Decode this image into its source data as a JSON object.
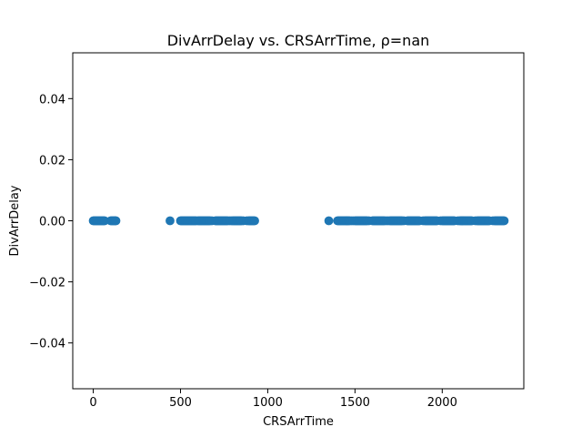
{
  "chart_data": {
    "type": "scatter",
    "title": "DivArrDelay vs. CRSArrTime, ρ=nan",
    "xlabel": "CRSArrTime",
    "ylabel": "DivArrDelay",
    "xlim": [
      -117.5,
      2467.5
    ],
    "ylim": [
      -0.055,
      0.055
    ],
    "xticks": [
      0,
      500,
      1000,
      1500,
      2000
    ],
    "xtick_labels": [
      "0",
      "500",
      "1000",
      "1500",
      "2000"
    ],
    "yticks": [
      -0.04,
      -0.02,
      0.0,
      0.02,
      0.04
    ],
    "ytick_labels": [
      "−0.04",
      "−0.02",
      "0.00",
      "0.02",
      "0.04"
    ],
    "grid": false,
    "marker_color": "#1f77b4",
    "series": [
      {
        "x": [
          0,
          5,
          10,
          15,
          20,
          25,
          30,
          35,
          40,
          45,
          50,
          55,
          60,
          65,
          100,
          105,
          110,
          115,
          120,
          125,
          130,
          440,
          500,
          505,
          510,
          515,
          520,
          525,
          530,
          535,
          540,
          545,
          550,
          555,
          560,
          565,
          570,
          575,
          580,
          585,
          590,
          600,
          605,
          610,
          615,
          620,
          625,
          630,
          635,
          640,
          645,
          650,
          655,
          660,
          665,
          670,
          680,
          700,
          705,
          710,
          715,
          720,
          725,
          730,
          735,
          740,
          745,
          750,
          755,
          760,
          765,
          770,
          780,
          790,
          800,
          805,
          810,
          815,
          820,
          825,
          830,
          835,
          840,
          845,
          850,
          860,
          880,
          890,
          895,
          900,
          905,
          910,
          915,
          920,
          925,
          1350,
          1400,
          1405,
          1410,
          1415,
          1420,
          1425,
          1430,
          1435,
          1440,
          1445,
          1450,
          1455,
          1460,
          1465,
          1470,
          1480,
          1490,
          1500,
          1505,
          1510,
          1515,
          1520,
          1525,
          1530,
          1535,
          1540,
          1545,
          1550,
          1555,
          1560,
          1565,
          1570,
          1580,
          1600,
          1605,
          1610,
          1615,
          1620,
          1625,
          1630,
          1635,
          1640,
          1645,
          1650,
          1655,
          1660,
          1665,
          1670,
          1680,
          1690,
          1700,
          1705,
          1710,
          1715,
          1720,
          1725,
          1730,
          1735,
          1740,
          1745,
          1750,
          1755,
          1760,
          1765,
          1770,
          1780,
          1800,
          1805,
          1810,
          1815,
          1820,
          1825,
          1830,
          1835,
          1840,
          1845,
          1850,
          1855,
          1860,
          1865,
          1870,
          1890,
          1900,
          1905,
          1910,
          1915,
          1920,
          1925,
          1930,
          1935,
          1940,
          1945,
          1950,
          1955,
          1960,
          1965,
          1970,
          1990,
          2000,
          2005,
          2010,
          2015,
          2020,
          2025,
          2030,
          2035,
          2040,
          2045,
          2050,
          2055,
          2060,
          2065,
          2070,
          2090,
          2100,
          2105,
          2110,
          2115,
          2120,
          2125,
          2130,
          2135,
          2140,
          2145,
          2150,
          2155,
          2160,
          2165,
          2170,
          2190,
          2200,
          2205,
          2210,
          2215,
          2220,
          2225,
          2230,
          2235,
          2240,
          2245,
          2250,
          2255,
          2260,
          2265,
          2270,
          2290,
          2300,
          2305,
          2310,
          2315,
          2320,
          2325,
          2330,
          2335,
          2340,
          2345,
          2350,
          2355
        ],
        "y_value": 0.0
      }
    ]
  }
}
